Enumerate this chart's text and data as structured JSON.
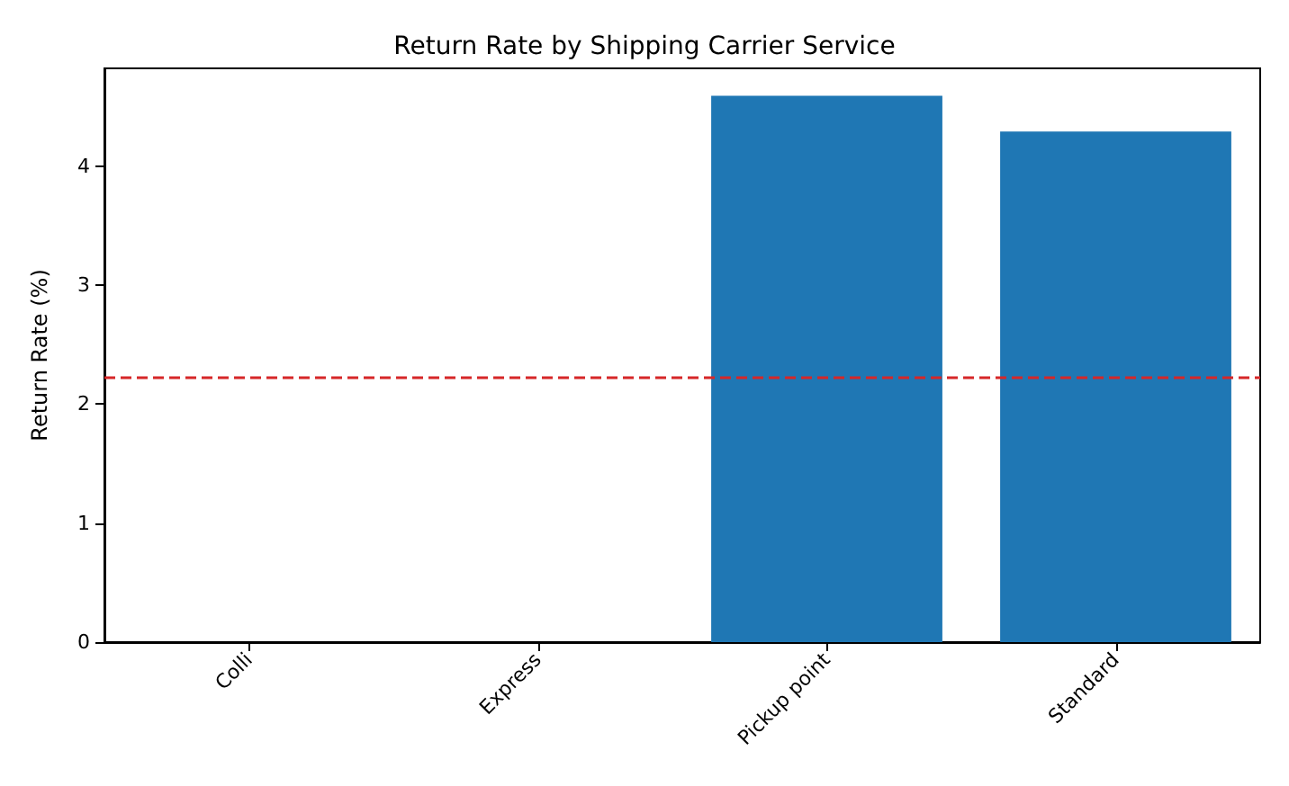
{
  "chart_data": {
    "type": "bar",
    "title": "Return Rate by Shipping Carrier Service",
    "ylabel": "Return Rate (%)",
    "categories": [
      "Colli",
      "Express",
      "Pickup point",
      "Standard"
    ],
    "values": [
      0,
      0,
      4.59,
      4.29
    ],
    "color": "#1f77b4",
    "ylim": [
      0,
      4.82
    ],
    "yticks": [
      0,
      1,
      2,
      3,
      4
    ],
    "grid": false,
    "ref_lines": [
      {
        "axis": "y",
        "value": 2.22,
        "color": "#d62728",
        "line_style": "dashed"
      }
    ]
  }
}
